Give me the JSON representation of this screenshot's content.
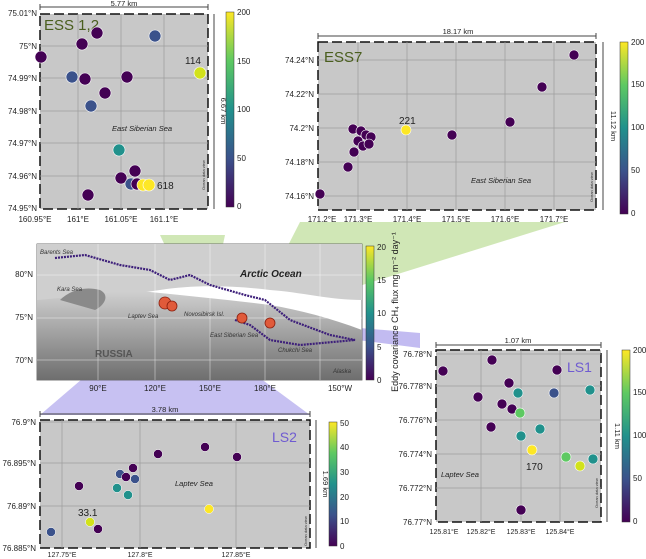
{
  "colorscale": [
    "#440154",
    "#3b528b",
    "#21918c",
    "#5ec962",
    "#fde725"
  ],
  "main_map": {
    "cb_label": "Eddy covariance CH₄ flux mg m⁻² day⁻¹",
    "cb_ticks": [
      "0",
      "5",
      "10",
      "15",
      "20"
    ],
    "lat_ticks": [
      "80°N",
      "75°N",
      "70°N"
    ],
    "lon_ticks": [
      "90°E",
      "120°E",
      "150°E",
      "180°E",
      "150°W"
    ],
    "labels": {
      "arctic": "Arctic Ocean",
      "russia": "RUSSIA",
      "alaska": "Alaska",
      "kara": "Kara Sea",
      "laptev": "Laptev Sea",
      "ess": "East Siberian Sea",
      "chukchi": "Chukchi Sea",
      "barents": "Barents Sea",
      "nsi": "Novosibirsk Isl."
    }
  },
  "ess12": {
    "title": "ESS 1,2",
    "scalebar_top": "5.77 km",
    "scalebar_side": "6.67 km",
    "lat_ticks": [
      "75.01°N",
      "75°N",
      "74.99°N",
      "74.98°N",
      "74.97°N",
      "74.96°N",
      "74.95°N"
    ],
    "lon_ticks": [
      "160.95°E",
      "161°E",
      "161.05°E",
      "161.1°E"
    ],
    "sea_label": "East Siberian Sea",
    "cb_ticks": [
      "0",
      "50",
      "100",
      "150",
      "200"
    ],
    "point_labels": [
      "114",
      "618"
    ],
    "attribution": "Ocean data view"
  },
  "ess7": {
    "title": "ESS7",
    "scalebar_top": "18.17 km",
    "scalebar_side": "11.12 km",
    "lat_ticks": [
      "74.24°N",
      "74.22°N",
      "74.2°N",
      "74.18°N",
      "74.16°N"
    ],
    "lon_ticks": [
      "171.2°E",
      "171.3°E",
      "171.4°E",
      "171.5°E",
      "171.6°E",
      "171.7°E"
    ],
    "sea_label": "East Siberian Sea",
    "cb_ticks": [
      "0",
      "50",
      "100",
      "150",
      "200"
    ],
    "point_labels": [
      "221"
    ],
    "attribution": "Ocean data view"
  },
  "ls1": {
    "title": "LS1",
    "scalebar_top": "1.07 km",
    "scalebar_side": "1.11 km",
    "lat_ticks": [
      "76.78°N",
      "76.778°N",
      "76.776°N",
      "76.774°N",
      "76.772°N",
      "76.77°N"
    ],
    "lon_ticks": [
      "125.81°E",
      "125.82°E",
      "125.83°E",
      "125.84°E"
    ],
    "sea_label": "Laptev Sea",
    "cb_ticks": [
      "0",
      "50",
      "100",
      "150",
      "200"
    ],
    "point_labels": [
      "170"
    ],
    "attribution": "Ocean data view"
  },
  "ls2": {
    "title": "LS2",
    "scalebar_top": "3.78 km",
    "scalebar_side": "1.69 km",
    "lat_ticks": [
      "76.9°N",
      "76.895°N",
      "76.89°N",
      "76.885°N"
    ],
    "lon_ticks": [
      "127.75°E",
      "127.8°E",
      "127.85°E"
    ],
    "sea_label": "Laptev Sea",
    "cb_ticks": [
      "0",
      "10",
      "20",
      "30",
      "40",
      "50"
    ],
    "point_labels": [
      "33.1"
    ],
    "attribution": "Ocean data view"
  }
}
